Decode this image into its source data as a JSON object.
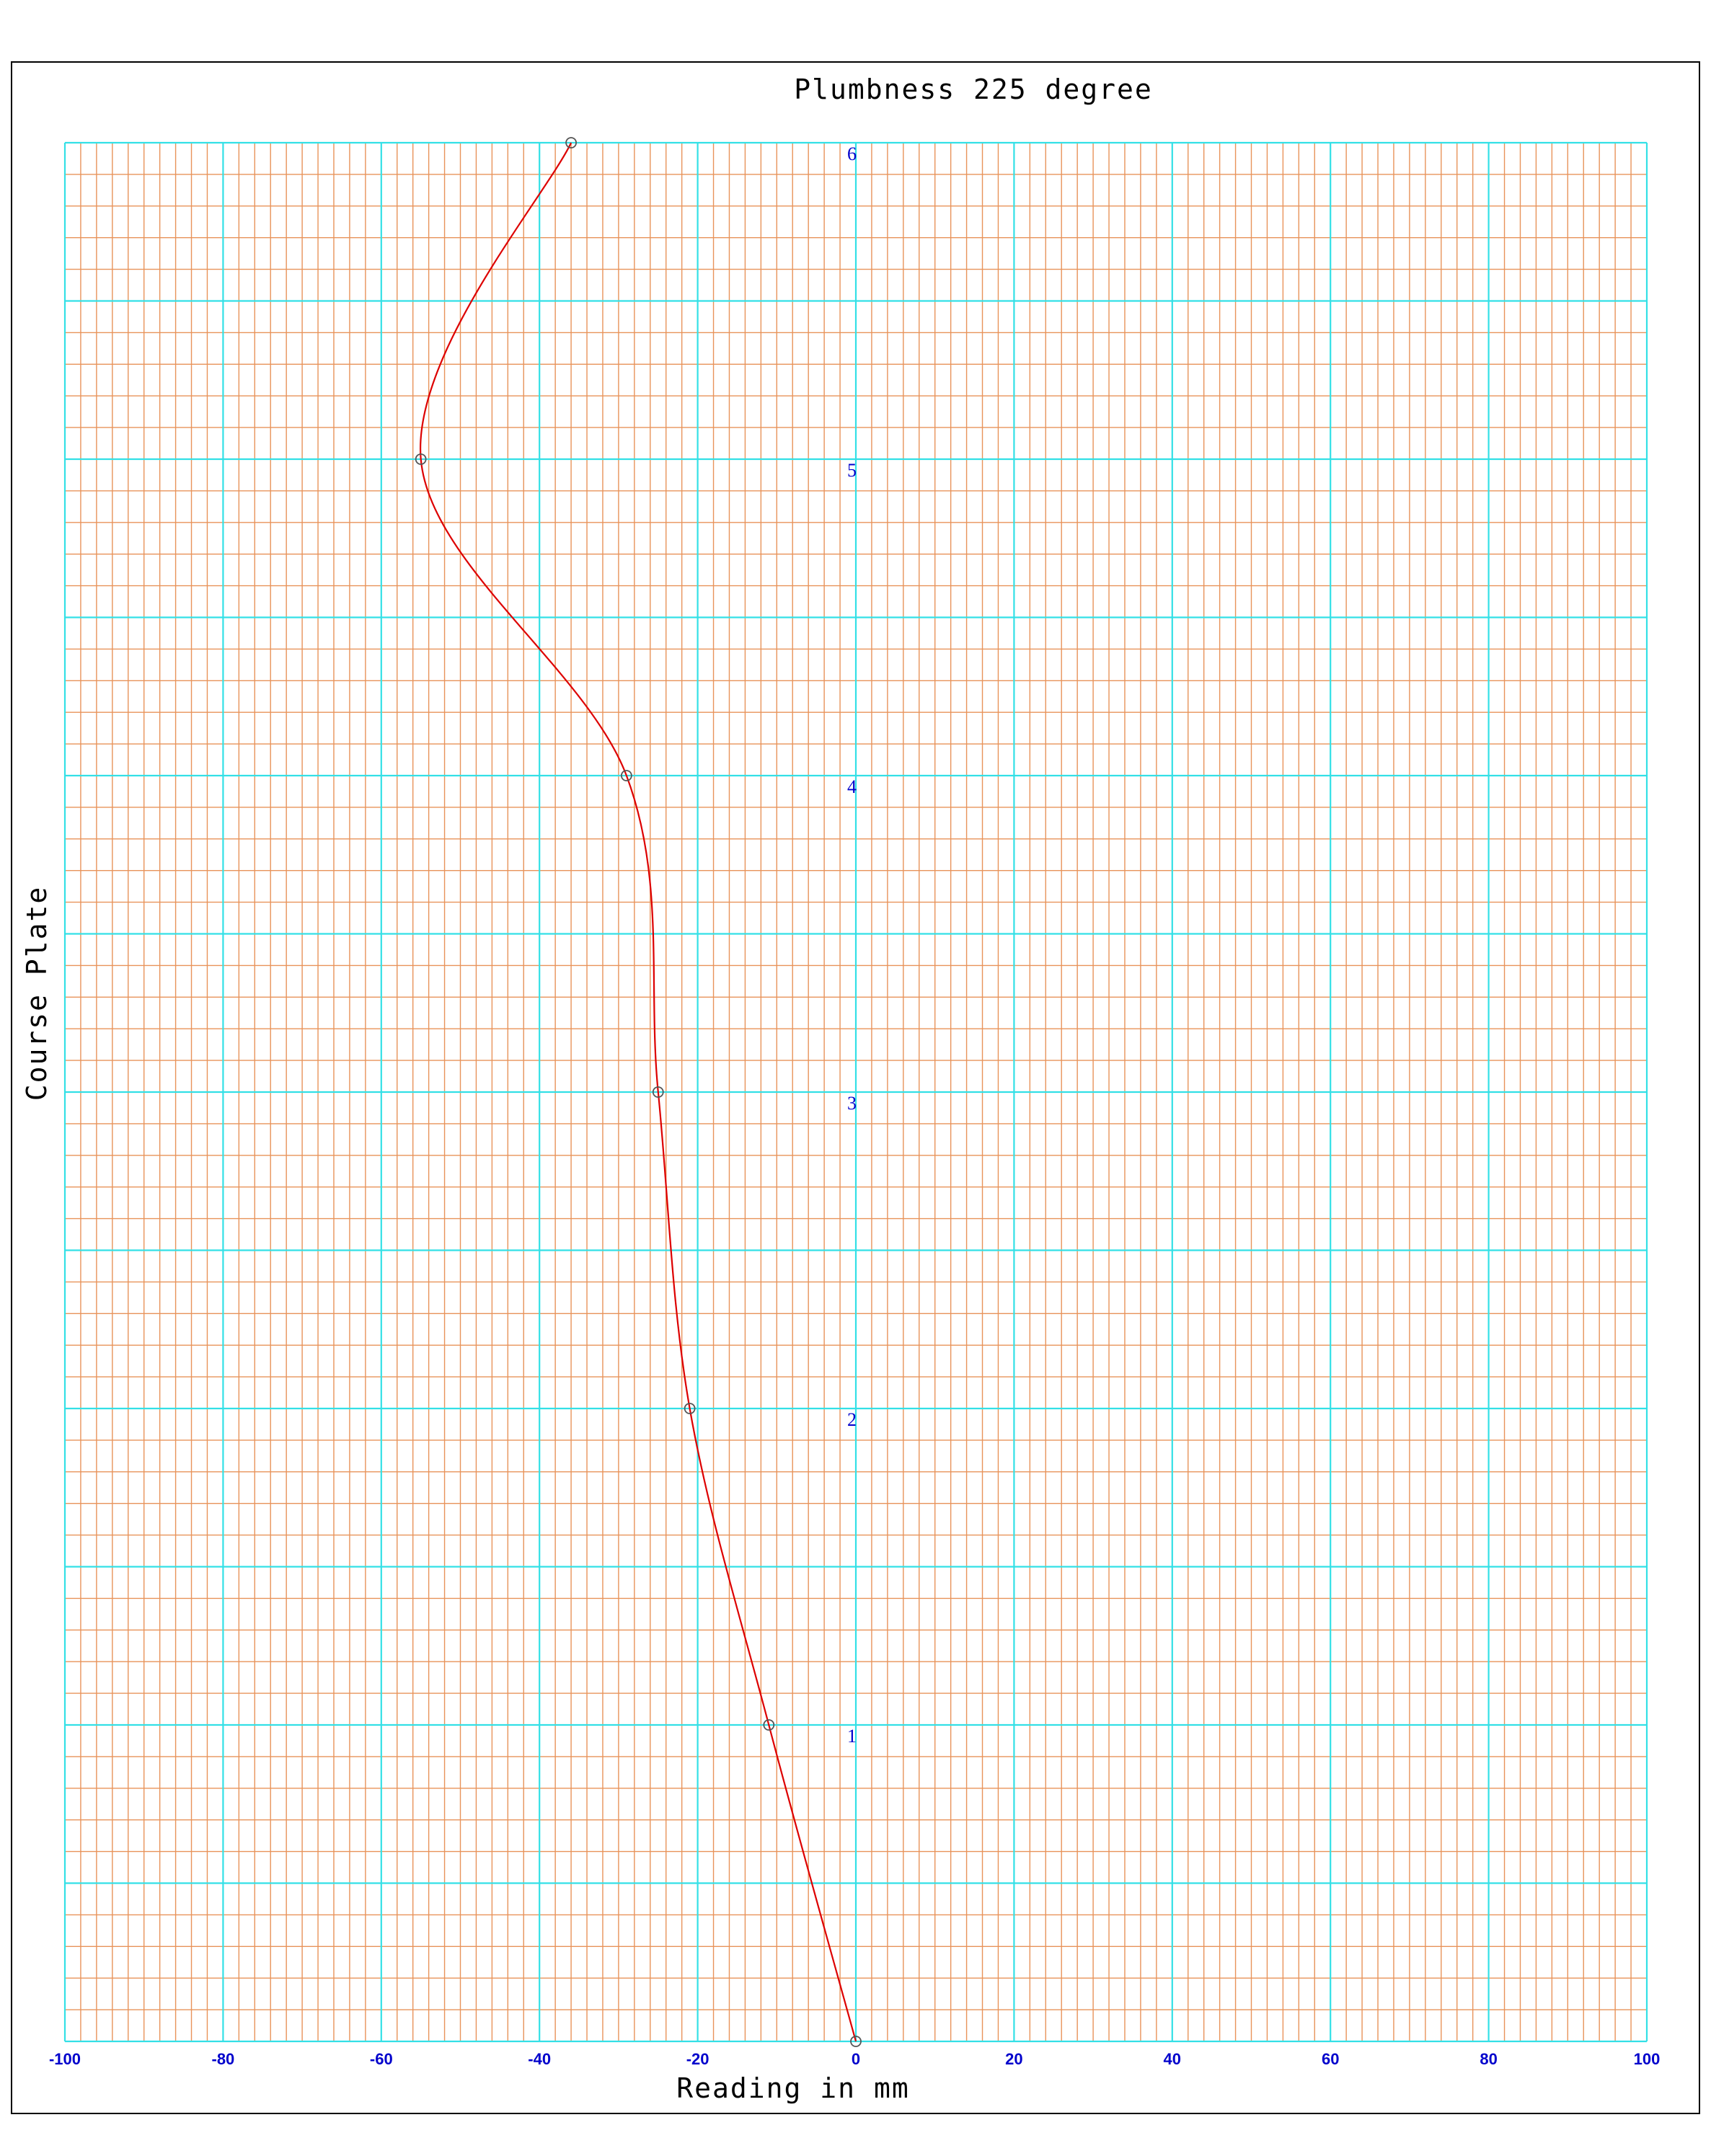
{
  "chart_data": {
    "type": "line",
    "title": "Plumbness 225 degree",
    "xlabel": "Reading in mm",
    "ylabel": "Course Plate",
    "xlim": [
      -100,
      100
    ],
    "ylim": [
      0,
      6
    ],
    "x_ticks": [
      "-100",
      "-80",
      "-60",
      "-40",
      "-20",
      "0",
      "20",
      "40",
      "60",
      "80",
      "100"
    ],
    "x_tick_values": [
      -100,
      -80,
      -60,
      -40,
      -20,
      0,
      20,
      40,
      60,
      80,
      100
    ],
    "y_ticks": [
      "1",
      "2",
      "3",
      "4",
      "5",
      "6"
    ],
    "y_tick_values": [
      1,
      2,
      3,
      4,
      5,
      6
    ],
    "grid": true,
    "minor_x_step": 2,
    "minor_y_step": 0.1,
    "major_x_step": 20,
    "major_y_step": 0.5,
    "series": [
      {
        "points": [
          {
            "x": 0,
            "y": 0
          },
          {
            "x": -11,
            "y": 1
          },
          {
            "x": -21,
            "y": 2
          },
          {
            "x": -25,
            "y": 3
          },
          {
            "x": -29,
            "y": 4
          },
          {
            "x": -55,
            "y": 5
          },
          {
            "x": -36,
            "y": 6
          }
        ]
      }
    ],
    "colors": {
      "major_grid": "#33e0e6",
      "minor_grid": "#e8935a",
      "line": "#dd0000",
      "marker": "#555555",
      "tick_labels": "#0000cc",
      "frame": "#000000"
    }
  }
}
